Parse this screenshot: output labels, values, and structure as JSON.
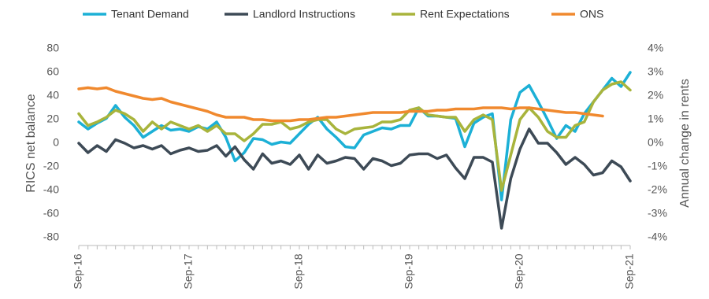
{
  "chart_data": {
    "type": "line",
    "y_label": "RICS net balance",
    "y2_label": "Annual change in rents",
    "categories": [
      "Sep-16",
      null,
      null,
      null,
      null,
      null,
      null,
      null,
      null,
      null,
      null,
      null,
      "Sep-17",
      null,
      null,
      null,
      null,
      null,
      null,
      null,
      null,
      null,
      null,
      null,
      "Sep-18",
      null,
      null,
      null,
      null,
      null,
      null,
      null,
      null,
      null,
      null,
      null,
      "Sep-19",
      null,
      null,
      null,
      null,
      null,
      null,
      null,
      null,
      null,
      null,
      null,
      "Sep-20",
      null,
      null,
      null,
      null,
      null,
      null,
      null,
      null,
      null,
      null,
      null,
      "Sep-21"
    ],
    "ylim": [
      -80,
      80
    ],
    "yticks": [
      -80,
      -60,
      -40,
      -20,
      0,
      20,
      40,
      60,
      80
    ],
    "y2lim": [
      -4,
      4
    ],
    "y2ticks": [
      {
        "value": -4,
        "label": "-4%"
      },
      {
        "value": -3,
        "label": "-3%"
      },
      {
        "value": -2,
        "label": "-2%"
      },
      {
        "value": -1,
        "label": "-1%"
      },
      {
        "value": 0,
        "label": "0%"
      },
      {
        "value": 1,
        "label": "1%"
      },
      {
        "value": 2,
        "label": "2%"
      },
      {
        "value": 3,
        "label": "3%"
      },
      {
        "value": 4,
        "label": "4%"
      }
    ],
    "grid": false,
    "legend": "top",
    "series": [
      {
        "name": "Tenant Demand",
        "color": "#1cb0d6",
        "values": [
          18,
          12,
          17,
          21,
          32,
          22,
          15,
          5,
          10,
          15,
          11,
          12,
          10,
          14,
          12,
          18,
          5,
          -15,
          -8,
          4,
          3,
          -1,
          1,
          0,
          8,
          16,
          22,
          12,
          5,
          -3,
          -4,
          7,
          10,
          13,
          12,
          15,
          15,
          30,
          23,
          23,
          22,
          21,
          -3,
          17,
          22,
          25,
          -48,
          20,
          43,
          49,
          35,
          20,
          4,
          15,
          10,
          25,
          35,
          45,
          55,
          48,
          60
        ]
      },
      {
        "name": "Landlord Instructions",
        "color": "#3d4a56",
        "values": [
          0,
          -8,
          -2,
          -7,
          3,
          0,
          -4,
          -2,
          -5,
          -2,
          -9,
          -6,
          -4,
          -7,
          -6,
          -2,
          -11,
          -3,
          -14,
          -22,
          -9,
          -17,
          -15,
          -18,
          -10,
          -22,
          -10,
          -17,
          -15,
          -12,
          -13,
          -22,
          -13,
          -15,
          -19,
          -17,
          -10,
          -9,
          -9,
          -13,
          -10,
          -21,
          -30,
          -12,
          -12,
          -16,
          -72,
          -30,
          -5,
          12,
          0,
          0,
          -8,
          -18,
          -12,
          -18,
          -27,
          -25,
          -15,
          -20,
          -32
        ]
      },
      {
        "name": "Rent Expectations",
        "color": "#a8b43c",
        "values": [
          25,
          15,
          18,
          22,
          28,
          25,
          20,
          10,
          18,
          12,
          18,
          15,
          12,
          15,
          10,
          15,
          8,
          8,
          2,
          8,
          16,
          16,
          18,
          12,
          14,
          18,
          20,
          20,
          12,
          8,
          12,
          13,
          14,
          18,
          18,
          20,
          28,
          30,
          24,
          23,
          22,
          22,
          10,
          20,
          24,
          20,
          -40,
          -10,
          20,
          30,
          22,
          10,
          5,
          5,
          15,
          18,
          35,
          45,
          50,
          52,
          45
        ]
      },
      {
        "name": "ONS",
        "color": "#f0892e",
        "axis": "y2",
        "values": [
          2.3,
          2.35,
          2.3,
          2.35,
          2.2,
          2.1,
          2.0,
          1.9,
          1.85,
          1.9,
          1.75,
          1.65,
          1.55,
          1.45,
          1.35,
          1.2,
          1.1,
          1.1,
          1.1,
          1.0,
          1.0,
          0.95,
          0.95,
          0.95,
          1.0,
          1.0,
          1.05,
          1.1,
          1.1,
          1.15,
          1.2,
          1.25,
          1.3,
          1.3,
          1.3,
          1.3,
          1.35,
          1.35,
          1.35,
          1.4,
          1.4,
          1.45,
          1.45,
          1.45,
          1.5,
          1.5,
          1.5,
          1.45,
          1.5,
          1.5,
          1.45,
          1.4,
          1.35,
          1.3,
          1.3,
          1.25,
          1.2,
          1.15,
          null,
          null,
          null
        ]
      }
    ]
  }
}
